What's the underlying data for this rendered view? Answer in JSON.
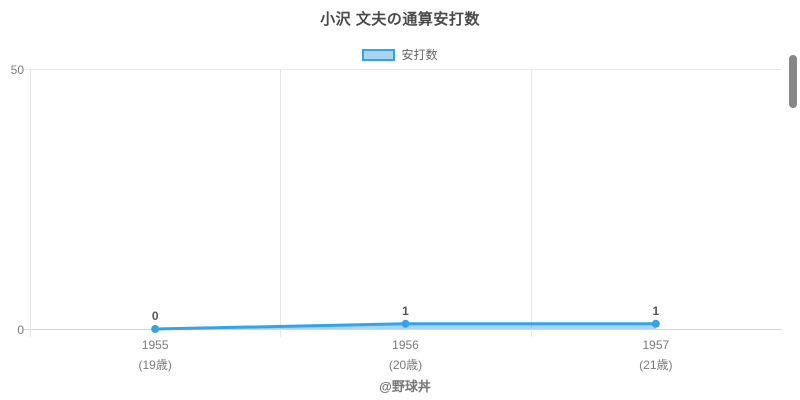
{
  "page": {
    "background": "#ffffff"
  },
  "chart": {
    "title": "小沢 文夫の通算安打数",
    "legend": {
      "label": "安打数",
      "swatch_fill": "#a9d4f4",
      "swatch_border": "#36a2eb"
    },
    "footer_credit": "@野球丼"
  },
  "chart_data": {
    "type": "line",
    "title": "小沢 文夫の通算安打数",
    "categories": [
      "1955",
      "1956",
      "1957"
    ],
    "category_sublabels": [
      "(19歳)",
      "(20歳)",
      "(21歳)"
    ],
    "series": [
      {
        "name": "安打数",
        "values": [
          0,
          1,
          1
        ]
      }
    ],
    "data_labels": [
      "0",
      "1",
      "1"
    ],
    "xlabel": "",
    "ylabel": "",
    "ylim": [
      0,
      50
    ],
    "yticks": [
      0,
      50
    ],
    "grid": true,
    "legend_position": "top",
    "line_color": "#36a2eb",
    "fill_color": "rgba(54,162,235,0.45)",
    "point_color": "#36a2eb"
  },
  "scrollbar": {
    "visible": "true"
  }
}
